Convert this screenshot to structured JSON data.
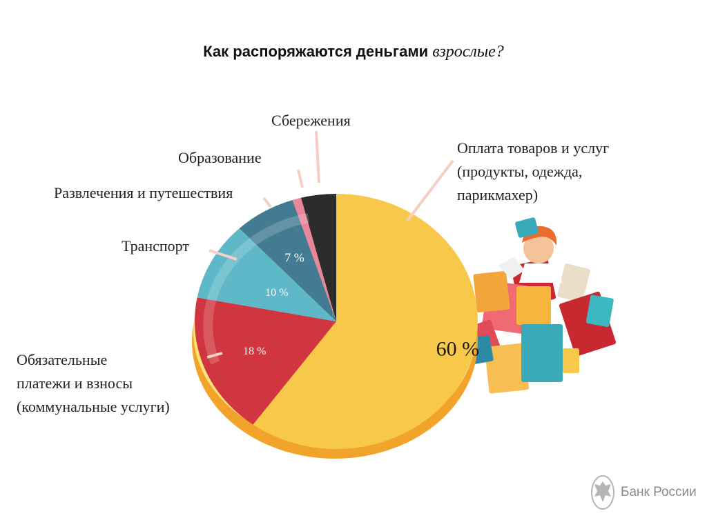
{
  "title": {
    "bold": "Как распоряжаются деньгами",
    "italic": "взрослые?"
  },
  "chart_data": {
    "type": "pie",
    "title": "Как распоряжаются деньгами взрослые?",
    "slices": [
      {
        "label": "Оплата товаров и услуг (продукты, одежда, парикмахер)",
        "value": 60,
        "value_label": "60 %",
        "color": "#f7c84a"
      },
      {
        "label": "Обязательные платежи и взносы (коммунальные услуги)",
        "value": 18,
        "value_label": "18 %",
        "color": "#d1353f"
      },
      {
        "label": "Транспорт",
        "value": 10,
        "value_label": "10 %",
        "color": "#5fb8c8"
      },
      {
        "label": "Развлечения и путешествия",
        "value": 7,
        "value_label": "7 %",
        "color": "#437b93"
      },
      {
        "label": "Образование",
        "value": 1,
        "value_label": "",
        "color": "#e8869a"
      },
      {
        "label": "Сбережения",
        "value": 4,
        "value_label": "",
        "color": "#2c2c2c"
      }
    ]
  },
  "labels": {
    "savings": "Сбережения",
    "education": "Образование",
    "entertainment": "Развлечения и путешествия",
    "transport": "Транспорт",
    "goods": [
      "Оплата товаров и услуг",
      "(продукты, одежда,",
      "парикмахер)"
    ],
    "mandatory": [
      "Обязательные",
      "платежи и взносы",
      "(коммунальные услуги)"
    ]
  },
  "colors": {
    "rim": "#f2a32a",
    "rim_light": "#fbe37a"
  },
  "logo": {
    "text": "Банк России",
    "icon": "eagle-emblem-icon"
  }
}
